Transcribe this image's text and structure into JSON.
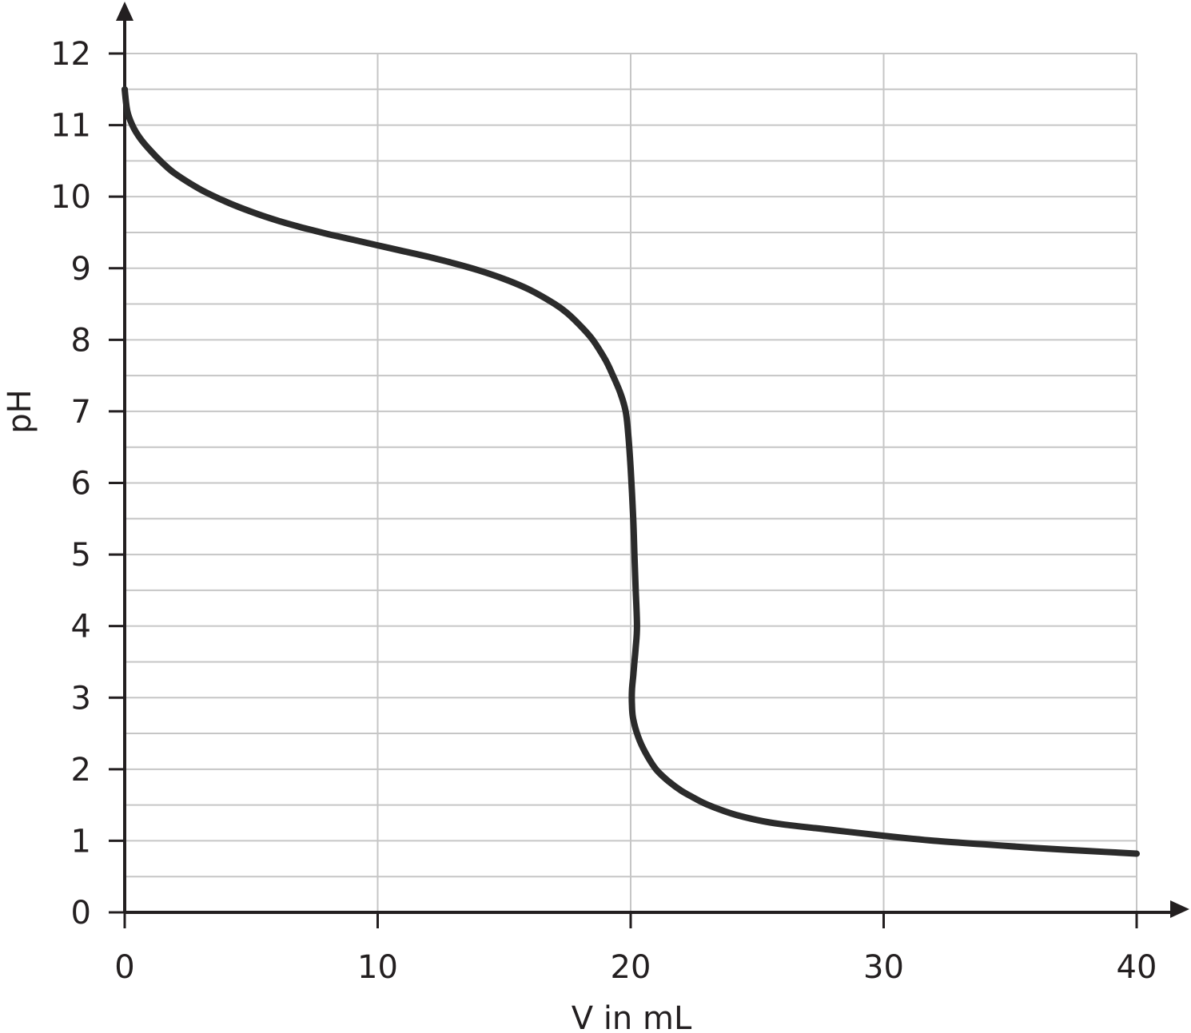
{
  "chart_data": {
    "type": "line",
    "xlabel": "V in mL",
    "ylabel": "pH",
    "xlim": [
      0,
      40
    ],
    "ylim": [
      0,
      12
    ],
    "x_ticks": [
      "0",
      "10",
      "20",
      "30",
      "40"
    ],
    "y_ticks": [
      "0",
      "1",
      "2",
      "3",
      "4",
      "5",
      "6",
      "7",
      "8",
      "9",
      "10",
      "11",
      "12"
    ],
    "grid": true,
    "x_grid_step": 10,
    "y_grid_step": 0.5,
    "colors": {
      "curve": "#2b2b2b",
      "grid": "#c6c6c6",
      "axis": "#231f20"
    },
    "series": [
      {
        "x": [
          0,
          0.1,
          0.3,
          0.6,
          1,
          1.5,
          2,
          3,
          4,
          5,
          6,
          7,
          8,
          9,
          10,
          11,
          12,
          13,
          14,
          15,
          16,
          17,
          17.5,
          18,
          18.5,
          19,
          19.3,
          19.6,
          19.8,
          19.9,
          20,
          20.1,
          20.15,
          20.2,
          20.25,
          20.2,
          20.15,
          20.1,
          20.05,
          20.05,
          20.1,
          20.3,
          20.6,
          21,
          21.5,
          22,
          22.5,
          23,
          24,
          25,
          26,
          28,
          30,
          32,
          34,
          36,
          38,
          40
        ],
        "y": [
          11.5,
          11.2,
          11.0,
          10.82,
          10.65,
          10.47,
          10.32,
          10.1,
          9.93,
          9.79,
          9.67,
          9.57,
          9.48,
          9.4,
          9.32,
          9.24,
          9.16,
          9.07,
          8.97,
          8.85,
          8.7,
          8.5,
          8.37,
          8.2,
          8.0,
          7.72,
          7.5,
          7.25,
          7.0,
          6.7,
          6.2,
          5.5,
          5.0,
          4.5,
          4.0,
          3.7,
          3.5,
          3.3,
          3.1,
          2.9,
          2.7,
          2.45,
          2.22,
          2.0,
          1.83,
          1.7,
          1.6,
          1.51,
          1.38,
          1.29,
          1.23,
          1.15,
          1.07,
          1.0,
          0.95,
          0.9,
          0.86,
          0.82
        ]
      }
    ]
  }
}
